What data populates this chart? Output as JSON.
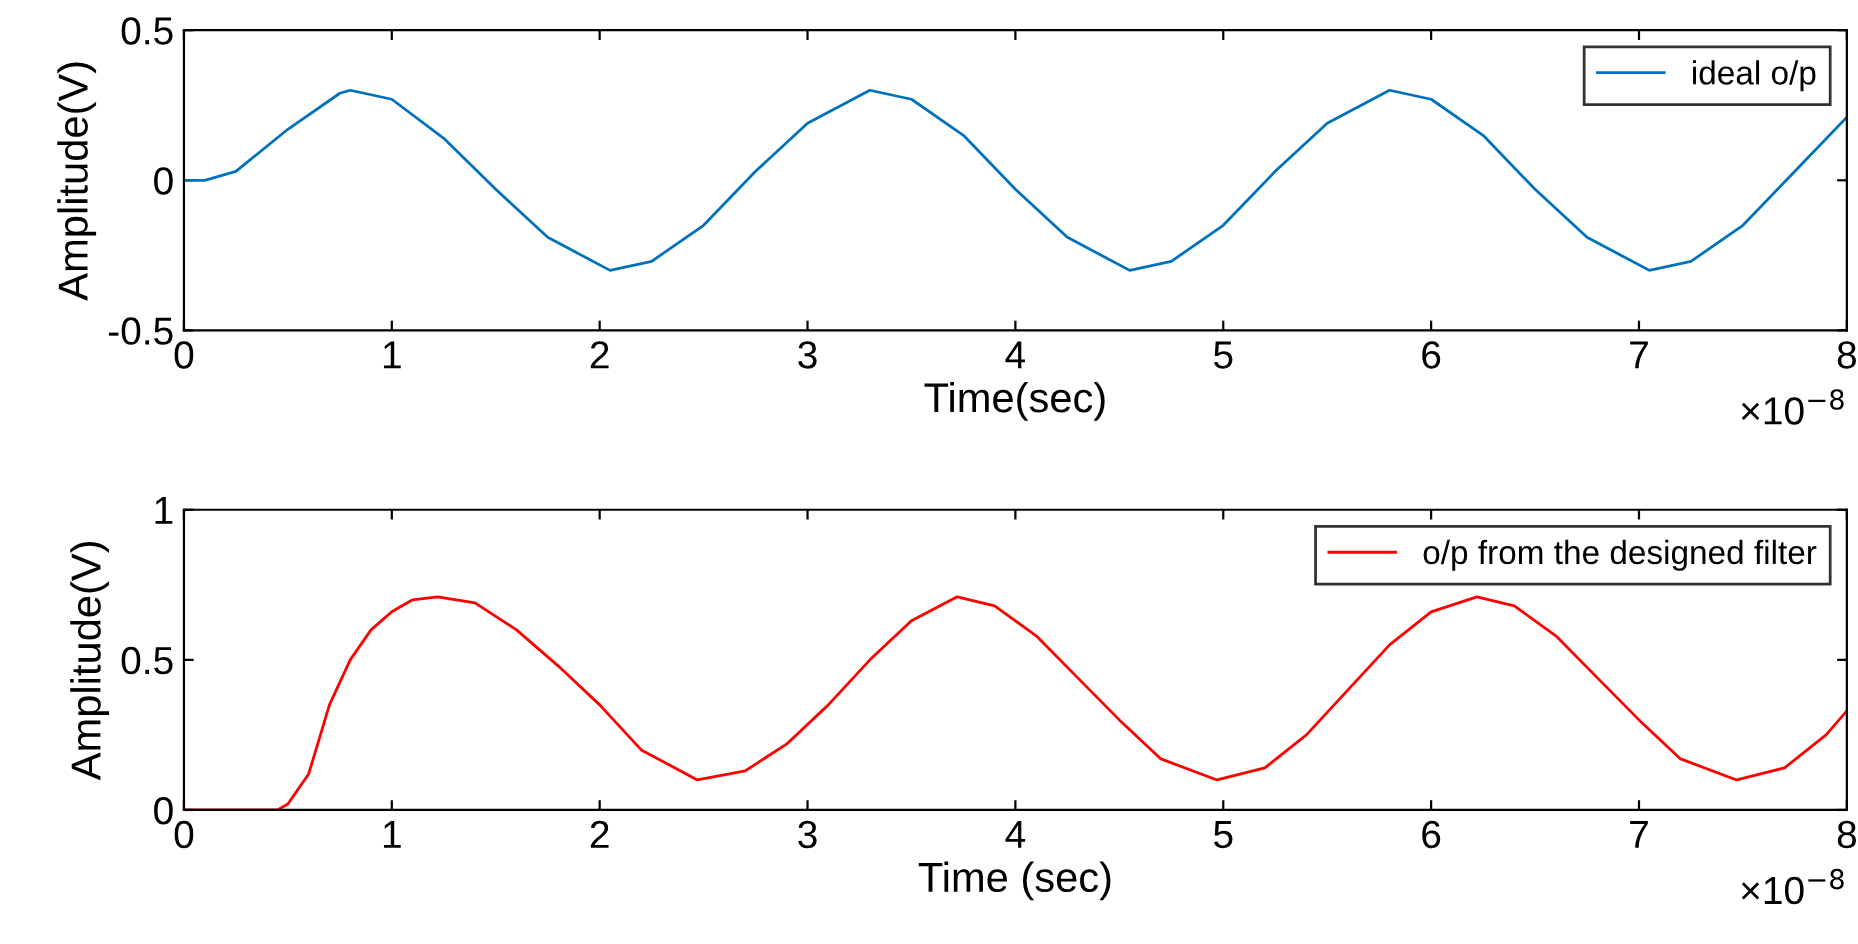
{
  "chart_data": [
    {
      "type": "line",
      "xlabel": "Time(sec)",
      "ylabel": "Amplitude(V)",
      "xlim": [
        0,
        8
      ],
      "xticks": [
        0,
        1,
        2,
        3,
        4,
        5,
        6,
        7,
        8
      ],
      "ylim": [
        -0.5,
        0.5
      ],
      "yticks": [
        -0.5,
        0,
        0.5
      ],
      "grid": false,
      "legend": "top right",
      "annotations": [
        "×10$^{−8}$"
      ],
      "series": [
        {
          "name": "ideal o/p",
          "color": "#0072bd",
          "x": [
            0,
            0.1,
            0.25,
            0.5,
            0.75,
            0.8,
            1.0,
            1.25,
            1.5,
            1.75,
            2.05,
            2.25,
            2.5,
            2.75,
            3.0,
            3.3,
            3.5,
            3.75,
            4.0,
            4.25,
            4.55,
            4.75,
            5.0,
            5.25,
            5.5,
            5.8,
            6.0,
            6.25,
            6.5,
            6.75,
            7.05,
            7.25,
            7.5,
            7.75,
            8.0
          ],
          "values": [
            0,
            0.0,
            0.03,
            0.17,
            0.29,
            0.3,
            0.27,
            0.14,
            -0.03,
            -0.19,
            -0.3,
            -0.27,
            -0.15,
            0.03,
            0.19,
            0.3,
            0.27,
            0.15,
            -0.03,
            -0.19,
            -0.3,
            -0.27,
            -0.15,
            0.03,
            0.19,
            0.3,
            0.27,
            0.15,
            -0.03,
            -0.19,
            -0.3,
            -0.27,
            -0.15,
            0.03,
            0.21
          ]
        }
      ]
    },
    {
      "type": "line",
      "xlabel": "Time (sec)",
      "ylabel": "Amplitude(V)",
      "xlim": [
        0,
        8
      ],
      "xticks": [
        0,
        1,
        2,
        3,
        4,
        5,
        6,
        7,
        8
      ],
      "ylim": [
        0,
        1
      ],
      "yticks": [
        0,
        0.5,
        1
      ],
      "grid": false,
      "legend": "top right",
      "annotations": [
        "×10$^{−8}$"
      ],
      "series": [
        {
          "name": "o/p from the designed filter",
          "color": "#ff0000",
          "x": [
            0,
            0.45,
            0.5,
            0.6,
            0.7,
            0.8,
            0.9,
            1.0,
            1.1,
            1.22,
            1.4,
            1.6,
            1.8,
            2.0,
            2.2,
            2.47,
            2.7,
            2.9,
            3.1,
            3.3,
            3.5,
            3.72,
            3.9,
            4.1,
            4.3,
            4.5,
            4.7,
            4.97,
            5.2,
            5.4,
            5.6,
            5.8,
            6.0,
            6.22,
            6.4,
            6.6,
            6.8,
            7.0,
            7.2,
            7.47,
            7.7,
            7.9,
            8.0
          ],
          "values": [
            0,
            0,
            0.02,
            0.12,
            0.35,
            0.5,
            0.6,
            0.66,
            0.7,
            0.71,
            0.69,
            0.6,
            0.48,
            0.35,
            0.2,
            0.1,
            0.13,
            0.22,
            0.35,
            0.5,
            0.63,
            0.71,
            0.68,
            0.58,
            0.44,
            0.3,
            0.17,
            0.1,
            0.14,
            0.25,
            0.4,
            0.55,
            0.66,
            0.71,
            0.68,
            0.58,
            0.44,
            0.3,
            0.17,
            0.1,
            0.14,
            0.25,
            0.33
          ]
        }
      ]
    }
  ]
}
